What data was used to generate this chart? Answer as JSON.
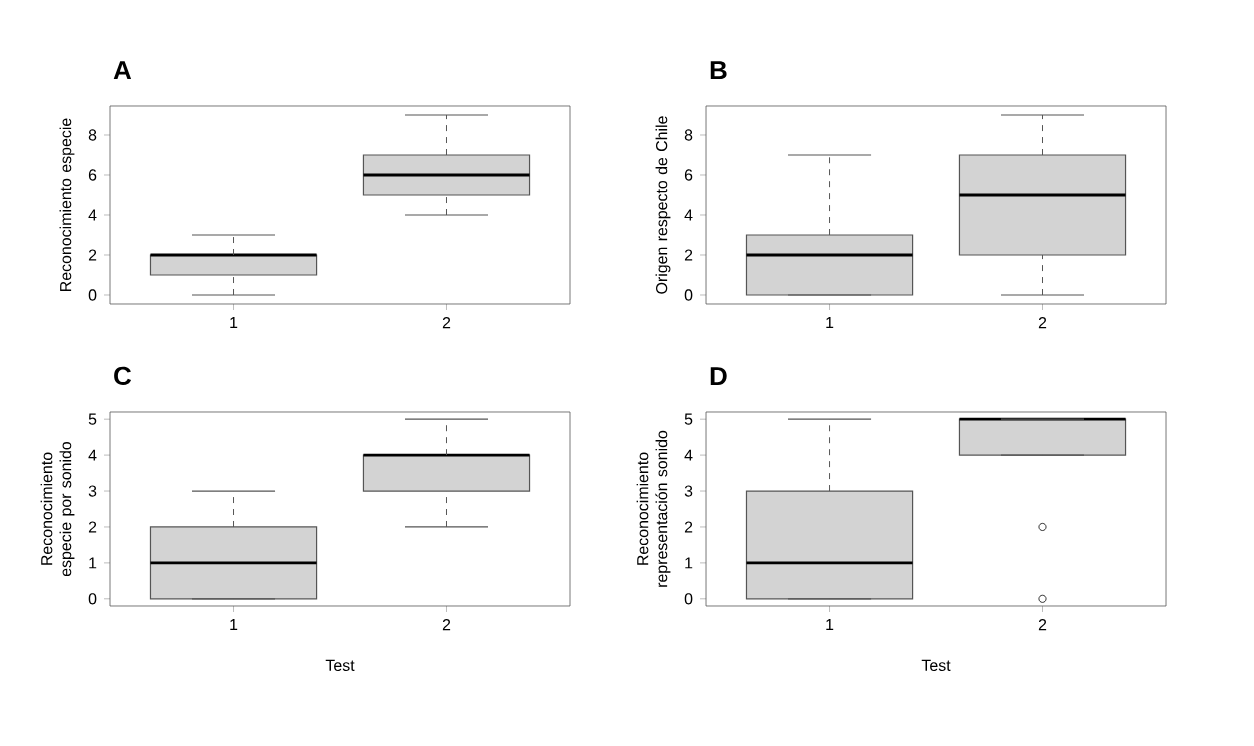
{
  "chart_data": [
    {
      "type": "box",
      "title": "A",
      "ylabel": "Reconocimiento especie",
      "categories": [
        "1",
        "2"
      ],
      "ylim": [
        -0.45,
        9.45
      ],
      "yticks": [
        0,
        2,
        4,
        6,
        8
      ],
      "series": [
        {
          "color": "#d3d3d3",
          "boxes": [
            {
              "low": 0,
              "q1": 1,
              "median": 2,
              "q3": 2,
              "high": 3
            },
            {
              "low": 4,
              "q1": 5,
              "median": 6,
              "q3": 7,
              "high": 9
            }
          ]
        }
      ]
    },
    {
      "type": "box",
      "title": "B",
      "ylabel": "Origen respecto de Chile",
      "categories": [
        "1",
        "2"
      ],
      "ylim": [
        -0.45,
        9.45
      ],
      "yticks": [
        0,
        2,
        4,
        6,
        8
      ],
      "series": [
        {
          "color": "#d3d3d3",
          "boxes": [
            {
              "low": 0,
              "q1": 0,
              "median": 2,
              "q3": 3,
              "high": 7
            },
            {
              "low": 0,
              "q1": 2,
              "median": 5,
              "q3": 7,
              "high": 9
            }
          ]
        }
      ]
    },
    {
      "type": "box",
      "title": "C",
      "xlabel": "Test",
      "ylabel": "Reconocimiento especie por sonido",
      "categories": [
        "1",
        "2"
      ],
      "ylim": [
        -0.2,
        5.2
      ],
      "yticks": [
        0,
        1,
        2,
        3,
        4,
        5
      ],
      "series": [
        {
          "color": "#d3d3d3",
          "boxes": [
            {
              "low": 0,
              "q1": 0,
              "median": 1,
              "q3": 2,
              "high": 3
            },
            {
              "low": 2,
              "q1": 3,
              "median": 4,
              "q3": 4,
              "high": 5
            }
          ]
        }
      ]
    },
    {
      "type": "box",
      "title": "D",
      "xlabel": "Test",
      "ylabel": "Reconocimiento representación sonido",
      "categories": [
        "1",
        "2"
      ],
      "ylim": [
        -0.2,
        5.2
      ],
      "yticks": [
        0,
        1,
        2,
        3,
        4,
        5
      ],
      "series": [
        {
          "color": "#d3d3d3",
          "boxes": [
            {
              "low": 0,
              "q1": 0,
              "median": 1,
              "q3": 3,
              "high": 5
            },
            {
              "low": 4,
              "q1": 4,
              "median": 5,
              "q3": 5,
              "high": 5,
              "outliers": [
                2,
                0
              ]
            }
          ]
        }
      ]
    }
  ]
}
